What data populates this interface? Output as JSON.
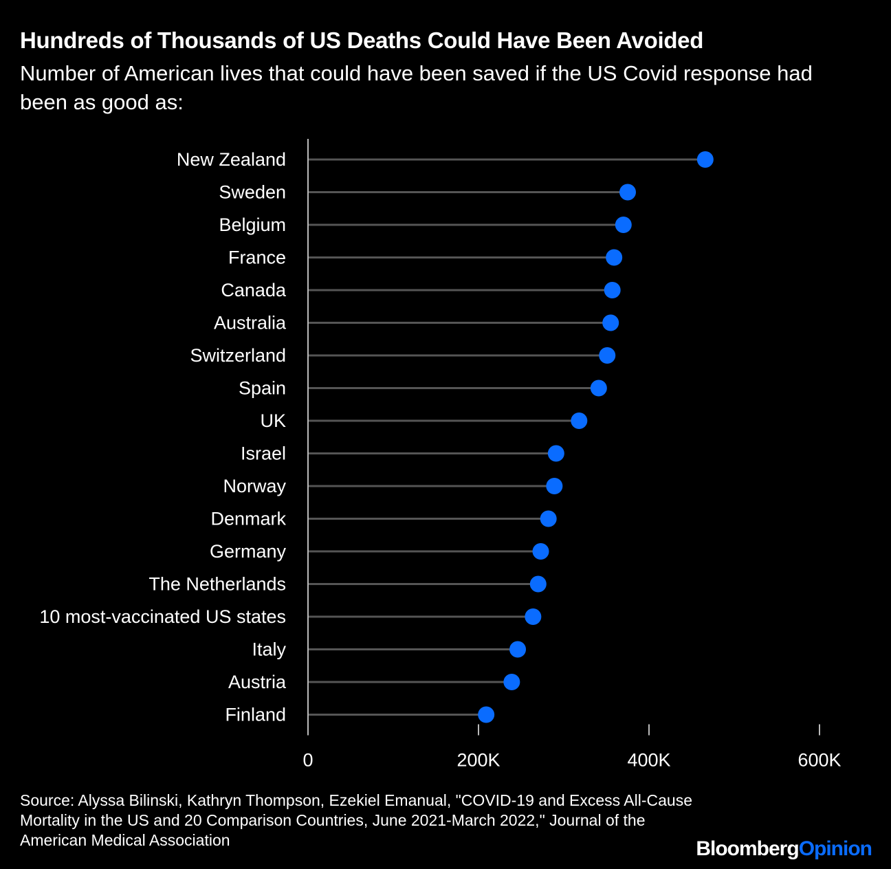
{
  "header": {
    "title": "Hundreds of Thousands of US Deaths Could Have Been Avoided",
    "subtitle": "Number of American lives that could have been saved if the US Covid response had been as good as:"
  },
  "footer": {
    "source": "Source: Alyssa Bilinski, Kathryn Thompson, Ezekiel Emanual, \"COVID-19 and Excess All-Cause Mortality in the US and 20 Comparison Countries, June 2021-March 2022,\" Journal of the American Medical Association",
    "brand_primary": "Bloomberg",
    "brand_secondary": "Opinion"
  },
  "colors": {
    "background": "#000000",
    "dot": "#0a6cff",
    "stem": "#555555",
    "text": "#ffffff",
    "brand_accent": "#0a6cff"
  },
  "chart_data": {
    "type": "lollipop",
    "orientation": "horizontal",
    "categories": [
      "New Zealand",
      "Sweden",
      "Belgium",
      "France",
      "Canada",
      "Australia",
      "Switzerland",
      "Spain",
      "UK",
      "Israel",
      "Norway",
      "Denmark",
      "Germany",
      "The Netherlands",
      "10 most-vaccinated US states",
      "Italy",
      "Austria",
      "Finland"
    ],
    "values": [
      466000,
      375000,
      370000,
      359000,
      357000,
      355000,
      351000,
      341000,
      318000,
      291000,
      289000,
      282000,
      273000,
      270000,
      264000,
      246000,
      239000,
      209000
    ],
    "xlim": [
      0,
      600000
    ],
    "xticks": [
      0,
      200000,
      400000,
      600000
    ],
    "xtick_labels": [
      "0",
      "200K",
      "400K",
      "600K"
    ],
    "xlabel": "",
    "ylabel": "",
    "grid": false,
    "legend": "none"
  }
}
